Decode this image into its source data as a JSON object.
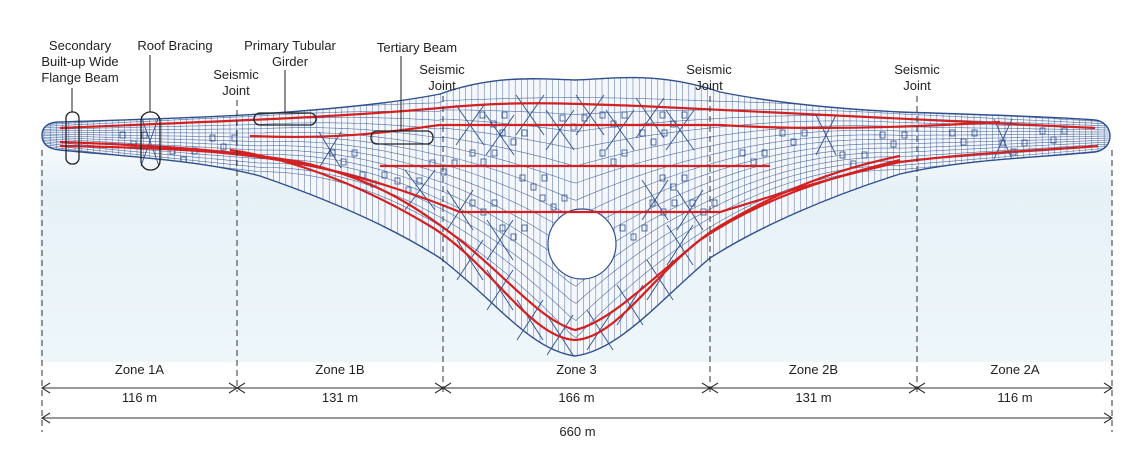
{
  "annotations": {
    "secondary_beam": "Secondary\nBuilt-up Wide\nFlange Beam",
    "roof_bracing": "Roof Bracing",
    "primary_girder": "Primary Tubular\nGirder",
    "tertiary_beam": "Tertiary Beam",
    "seismic_joint": "Seismic\nJoint"
  },
  "zones": [
    {
      "name": "Zone 1A",
      "length": "116 m"
    },
    {
      "name": "Zone 1B",
      "length": "131 m"
    },
    {
      "name": "Zone 3",
      "length": "166 m"
    },
    {
      "name": "Zone 2B",
      "length": "131 m"
    },
    {
      "name": "Zone 2A",
      "length": "116 m"
    }
  ],
  "total_length": "660 m",
  "colors": {
    "grid": "#2f4f8f",
    "girder": "#d42020",
    "sky": "#e8f3f8",
    "line": "#333333"
  }
}
